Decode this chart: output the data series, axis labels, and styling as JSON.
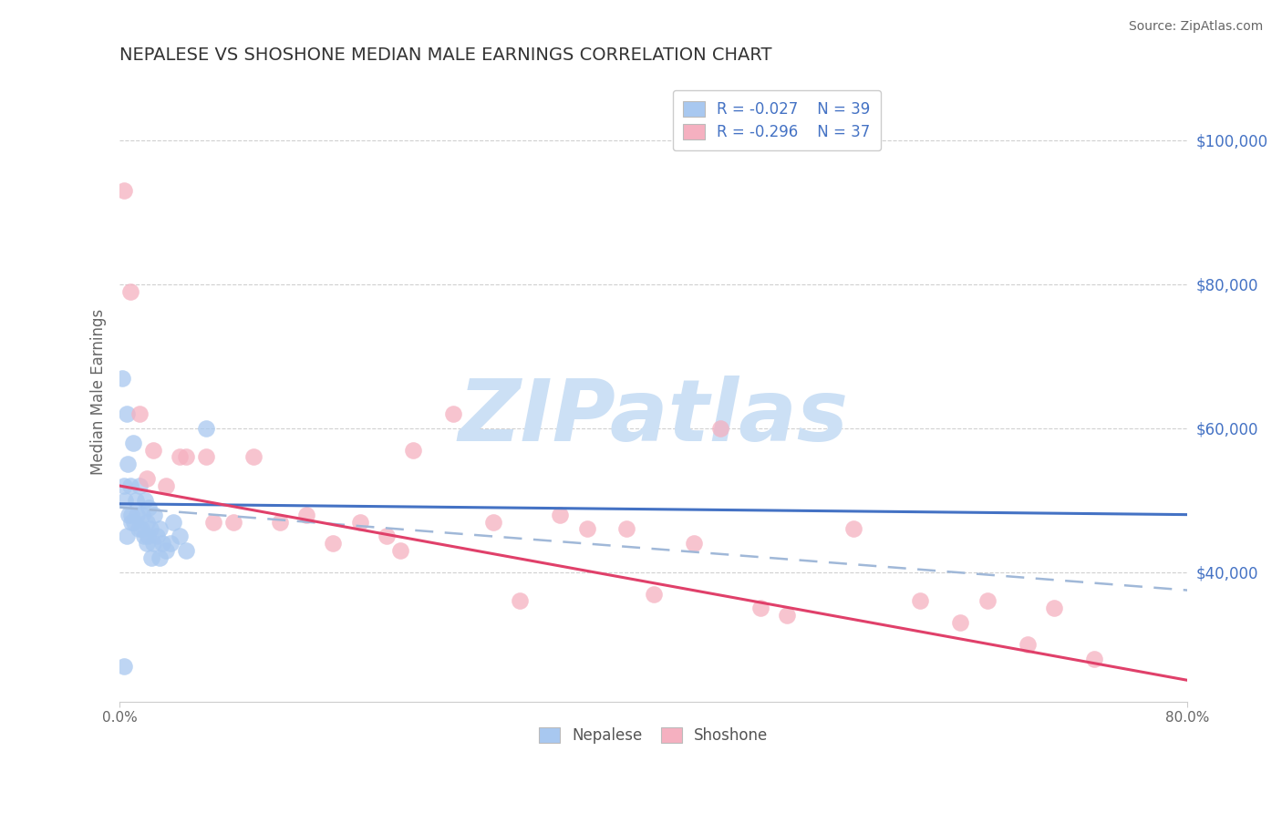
{
  "title": "NEPALESE VS SHOSHONE MEDIAN MALE EARNINGS CORRELATION CHART",
  "source": "Source: ZipAtlas.com",
  "ylabel": "Median Male Earnings",
  "xlim": [
    0.0,
    80.0
  ],
  "ylim": [
    22000,
    108000
  ],
  "xticks": [
    0.0,
    80.0
  ],
  "yticks": [
    40000,
    60000,
    80000,
    100000
  ],
  "ytick_labels": [
    "$40,000",
    "$60,000",
    "$80,000",
    "$100,000"
  ],
  "nepalese_color": "#a8c8f0",
  "shoshone_color": "#f5b0c0",
  "nepalese_R": -0.027,
  "nepalese_N": 39,
  "shoshone_R": -0.296,
  "shoshone_N": 37,
  "trend_blue_solid": "#4472c4",
  "trend_pink_solid": "#e0406a",
  "trend_dashed_color": "#a0b8d8",
  "watermark": "ZIPatlas",
  "watermark_color": "#cce0f5",
  "nepalese_x": [
    0.2,
    0.4,
    0.5,
    0.6,
    0.8,
    0.9,
    1.0,
    1.1,
    1.2,
    1.3,
    1.5,
    1.6,
    1.7,
    1.8,
    1.9,
    2.0,
    2.1,
    2.2,
    2.3,
    2.5,
    2.6,
    2.8,
    3.0,
    3.2,
    3.5,
    3.8,
    4.0,
    4.5,
    5.0,
    0.3,
    0.7,
    1.4,
    2.0,
    2.4,
    3.0,
    0.5,
    0.9,
    6.5,
    0.3
  ],
  "nepalese_y": [
    67000,
    50000,
    62000,
    55000,
    52000,
    48000,
    58000,
    47000,
    50000,
    48000,
    52000,
    46000,
    48000,
    45000,
    50000,
    47000,
    45000,
    49000,
    46000,
    44000,
    48000,
    45000,
    46000,
    44000,
    43000,
    44000,
    47000,
    45000,
    43000,
    52000,
    48000,
    46000,
    44000,
    42000,
    42000,
    45000,
    47000,
    60000,
    27000
  ],
  "shoshone_x": [
    0.3,
    0.8,
    1.5,
    2.5,
    3.5,
    5.0,
    6.5,
    8.5,
    10.0,
    12.0,
    14.0,
    16.0,
    18.0,
    20.0,
    21.0,
    22.0,
    25.0,
    28.0,
    30.0,
    33.0,
    35.0,
    38.0,
    40.0,
    43.0,
    45.0,
    48.0,
    50.0,
    55.0,
    60.0,
    63.0,
    65.0,
    68.0,
    70.0,
    73.0,
    2.0,
    4.5,
    7.0
  ],
  "shoshone_y": [
    93000,
    79000,
    62000,
    57000,
    52000,
    56000,
    56000,
    47000,
    56000,
    47000,
    48000,
    44000,
    47000,
    45000,
    43000,
    57000,
    62000,
    47000,
    36000,
    48000,
    46000,
    46000,
    37000,
    44000,
    60000,
    35000,
    34000,
    46000,
    36000,
    33000,
    36000,
    30000,
    35000,
    28000,
    53000,
    56000,
    47000
  ]
}
